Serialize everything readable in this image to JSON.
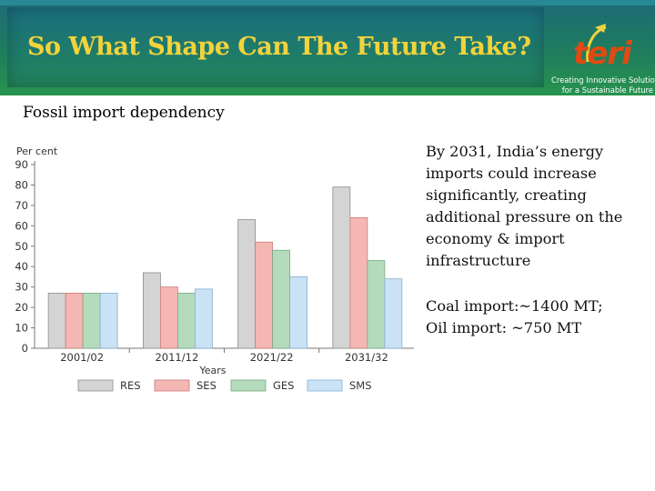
{
  "header": {
    "title": "So What Shape Can The Future Take?",
    "logo_word": "teri",
    "logo_tagline": [
      "Creating Innovative Solutions",
      "for a Sustainable Future"
    ]
  },
  "subtitle": "Fossil import dependency",
  "side_text": {
    "paragraph1": "By 2031, India’s energy imports could increase significantly, creating additional pressure on the economy & import infrastructure",
    "paragraph2_line1": "Coal import:~1400 MT;",
    "paragraph2_line2": "Oil import: ~750 MT"
  },
  "chart_data": {
    "type": "bar",
    "ylabel": "Per cent",
    "xlabel": "Years",
    "ylim": [
      0,
      90
    ],
    "yticks": [
      0,
      10,
      20,
      30,
      40,
      50,
      60,
      70,
      80,
      90
    ],
    "categories": [
      "2001/02",
      "2011/12",
      "2021/22",
      "2031/32"
    ],
    "series": [
      {
        "name": "RES",
        "values": [
          27,
          37,
          63,
          79
        ]
      },
      {
        "name": "SES",
        "values": [
          27,
          30,
          52,
          64
        ]
      },
      {
        "name": "GES",
        "values": [
          27,
          27,
          48,
          43
        ]
      },
      {
        "name": "SMS",
        "values": [
          27,
          29,
          35,
          34
        ]
      }
    ],
    "grid": false,
    "legend_position": "bottom",
    "colors": {
      "RES": {
        "fill": "#d4d4d4",
        "stroke": "#8c8c8c"
      },
      "SES": {
        "fill": "#f4b7b3",
        "stroke": "#c97c78"
      },
      "GES": {
        "fill": "#b5dbbd",
        "stroke": "#79a983"
      },
      "SMS": {
        "fill": "#c9e2f6",
        "stroke": "#86aed0"
      }
    }
  }
}
